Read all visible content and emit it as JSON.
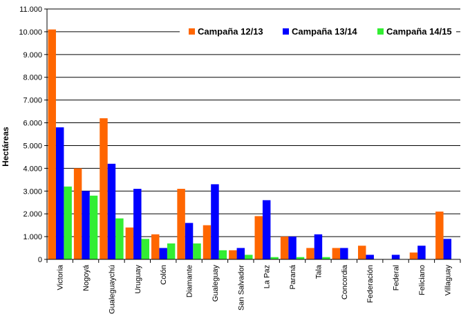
{
  "chart_data": {
    "type": "bar",
    "ylabel": "Hectáreas",
    "xlabel": "",
    "ylim": [
      0,
      11000
    ],
    "ytick_step": 1000,
    "grid": true,
    "legend_position": "top-right",
    "categories": [
      "Victoria",
      "Nogoyá",
      "Gualeguaychú",
      "Uruguay",
      "Colón",
      "Diamante",
      "Gualeguay",
      "San Salvador",
      "La Paz",
      "Paraná",
      "Tala",
      "Concordia",
      "Federación",
      "Federal",
      "Feliciano",
      "Villaguay"
    ],
    "series": [
      {
        "name": "Campaña 12/13",
        "color": "#ff6600",
        "values": [
          10100,
          4000,
          6200,
          1400,
          1100,
          3100,
          1500,
          400,
          1900,
          1000,
          500,
          500,
          600,
          0,
          300,
          2100
        ]
      },
      {
        "name": "Campaña 13/14",
        "color": "#0000ff",
        "values": [
          5800,
          3000,
          4200,
          3100,
          500,
          1600,
          3300,
          500,
          2600,
          1000,
          1100,
          500,
          200,
          200,
          600,
          900
        ]
      },
      {
        "name": "Campaña 14/15",
        "color": "#33ee33",
        "values": [
          3200,
          2800,
          1800,
          900,
          700,
          700,
          400,
          200,
          100,
          100,
          100,
          0,
          0,
          0,
          0,
          0
        ]
      }
    ]
  }
}
